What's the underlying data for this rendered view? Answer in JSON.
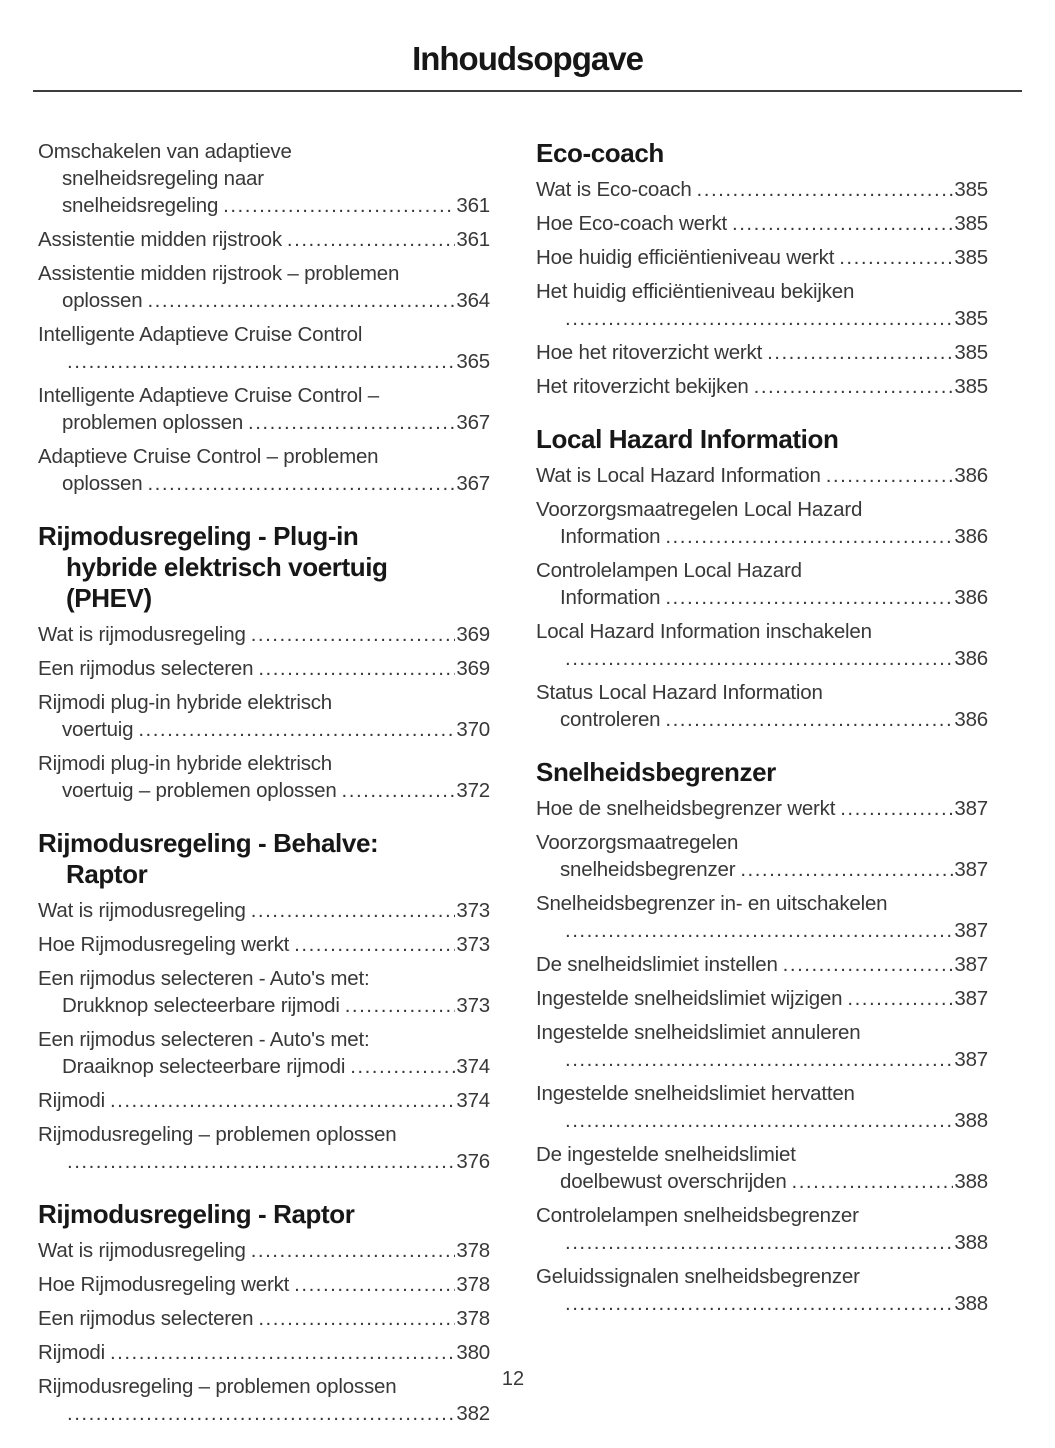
{
  "page_title": "Inhoudsopgave",
  "footer": {
    "page_number": "12"
  },
  "colors": {
    "text": "#383838",
    "heading": "#171717",
    "rule": "#3d3d3d"
  },
  "columns": [
    {
      "sections": [
        {
          "heading_lines": [],
          "items": [
            {
              "lines": [
                "Omschakelen van adaptieve",
                "snelheidsregeling naar",
                "snelheidsregeling"
              ],
              "page": "361"
            },
            {
              "lines": [
                "Assistentie midden rijstrook"
              ],
              "page": "361"
            },
            {
              "lines": [
                "Assistentie midden rijstrook – problemen",
                "oplossen"
              ],
              "page": "364"
            },
            {
              "lines": [
                "Intelligente Adaptieve Cruise Control",
                ""
              ],
              "page": "365"
            },
            {
              "lines": [
                "Intelligente Adaptieve Cruise Control –",
                "problemen oplossen"
              ],
              "page": "367"
            },
            {
              "lines": [
                "Adaptieve Cruise Control – problemen",
                "oplossen"
              ],
              "page": "367"
            }
          ]
        },
        {
          "heading_lines": [
            "Rijmodusregeling - Plug-in",
            "hybride elektrisch voertuig",
            "(PHEV)"
          ],
          "items": [
            {
              "lines": [
                "Wat is rijmodusregeling"
              ],
              "page": "369"
            },
            {
              "lines": [
                "Een rijmodus selecteren"
              ],
              "page": "369"
            },
            {
              "lines": [
                "Rijmodi plug-in hybride elektrisch",
                "voertuig"
              ],
              "page": "370"
            },
            {
              "lines": [
                "Rijmodi plug-in hybride elektrisch",
                "voertuig – problemen oplossen"
              ],
              "page": "372"
            }
          ]
        },
        {
          "heading_lines": [
            "Rijmodusregeling - Behalve:",
            "Raptor"
          ],
          "items": [
            {
              "lines": [
                "Wat is rijmodusregeling"
              ],
              "page": "373"
            },
            {
              "lines": [
                "Hoe Rijmodusregeling werkt"
              ],
              "page": "373"
            },
            {
              "lines": [
                "Een rijmodus selecteren - Auto's met:",
                "Drukknop selecteerbare rijmodi"
              ],
              "page": "373"
            },
            {
              "lines": [
                "Een rijmodus selecteren - Auto's met:",
                "Draaiknop selecteerbare rijmodi"
              ],
              "page": "374"
            },
            {
              "lines": [
                "Rijmodi"
              ],
              "page": "374"
            },
            {
              "lines": [
                "Rijmodusregeling – problemen oplossen",
                ""
              ],
              "page": "376"
            }
          ]
        },
        {
          "heading_lines": [
            "Rijmodusregeling - Raptor"
          ],
          "items": [
            {
              "lines": [
                "Wat is rijmodusregeling"
              ],
              "page": "378"
            },
            {
              "lines": [
                "Hoe Rijmodusregeling werkt"
              ],
              "page": "378"
            },
            {
              "lines": [
                "Een rijmodus selecteren"
              ],
              "page": "378"
            },
            {
              "lines": [
                "Rijmodi"
              ],
              "page": "380"
            },
            {
              "lines": [
                "Rijmodusregeling – problemen oplossen",
                ""
              ],
              "page": "382"
            }
          ]
        }
      ]
    },
    {
      "sections": [
        {
          "heading_lines": [
            "Eco-coach"
          ],
          "items": [
            {
              "lines": [
                "Wat is Eco-coach"
              ],
              "page": "385"
            },
            {
              "lines": [
                "Hoe Eco-coach werkt"
              ],
              "page": "385"
            },
            {
              "lines": [
                "Hoe huidig efficiëntieniveau werkt"
              ],
              "page": "385"
            },
            {
              "lines": [
                "Het huidig efficiëntieniveau bekijken",
                ""
              ],
              "page": "385"
            },
            {
              "lines": [
                "Hoe het ritoverzicht werkt"
              ],
              "page": "385"
            },
            {
              "lines": [
                "Het ritoverzicht bekijken"
              ],
              "page": "385"
            }
          ]
        },
        {
          "heading_lines": [
            "Local Hazard Information"
          ],
          "items": [
            {
              "lines": [
                "Wat is Local Hazard Information"
              ],
              "page": "386"
            },
            {
              "lines": [
                "Voorzorgsmaatregelen Local Hazard",
                "Information"
              ],
              "page": "386"
            },
            {
              "lines": [
                "Controlelampen Local Hazard",
                "Information"
              ],
              "page": "386"
            },
            {
              "lines": [
                "Local Hazard Information inschakelen",
                ""
              ],
              "page": "386"
            },
            {
              "lines": [
                "Status Local Hazard Information",
                "controleren"
              ],
              "page": "386"
            }
          ]
        },
        {
          "heading_lines": [
            "Snelheidsbegrenzer"
          ],
          "items": [
            {
              "lines": [
                "Hoe de snelheidsbegrenzer werkt"
              ],
              "page": "387"
            },
            {
              "lines": [
                "Voorzorgsmaatregelen",
                "snelheidsbegrenzer"
              ],
              "page": "387"
            },
            {
              "lines": [
                "Snelheidsbegrenzer in- en uitschakelen",
                ""
              ],
              "page": "387"
            },
            {
              "lines": [
                "De snelheidslimiet instellen"
              ],
              "page": "387"
            },
            {
              "lines": [
                "Ingestelde snelheidslimiet wijzigen"
              ],
              "page": "387"
            },
            {
              "lines": [
                "Ingestelde snelheidslimiet annuleren",
                ""
              ],
              "page": "387"
            },
            {
              "lines": [
                "Ingestelde snelheidslimiet hervatten",
                ""
              ],
              "page": "388"
            },
            {
              "lines": [
                "De ingestelde snelheidslimiet",
                "doelbewust overschrijden"
              ],
              "page": "388"
            },
            {
              "lines": [
                "Controlelampen snelheidsbegrenzer",
                ""
              ],
              "page": "388"
            },
            {
              "lines": [
                "Geluidssignalen snelheidsbegrenzer",
                ""
              ],
              "page": "388"
            }
          ]
        }
      ]
    }
  ]
}
